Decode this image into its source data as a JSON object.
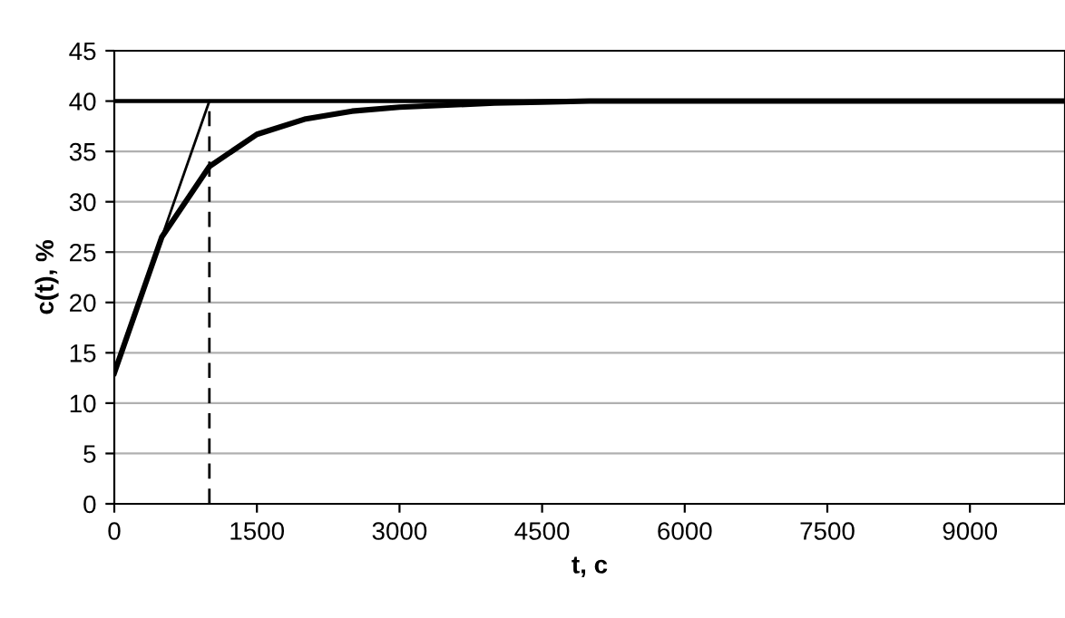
{
  "chart_data": {
    "type": "line",
    "xlabel": "t, c",
    "ylabel": "c(t), %",
    "xlim": [
      0,
      10000
    ],
    "xticks": [
      0,
      1500,
      3000,
      4500,
      6000,
      7500,
      9000
    ],
    "ylim": [
      0,
      45
    ],
    "yticks": [
      0,
      5,
      10,
      15,
      20,
      25,
      30,
      35,
      40,
      45
    ],
    "grid": "y",
    "legend": false,
    "marker": "none",
    "series": [
      {
        "color": "#000000",
        "x": [
          0,
          500,
          1000,
          1500,
          2000,
          2500,
          3000,
          3500,
          4000,
          4500,
          5000,
          6000,
          7000,
          8000,
          9000,
          10000
        ],
        "values": [
          13,
          26.5,
          33.5,
          36.7,
          38.2,
          39,
          39.4,
          39.6,
          39.8,
          39.9,
          40,
          40,
          40,
          40,
          40,
          40
        ]
      },
      {
        "color": "#000000",
        "x": [
          0,
          1000
        ],
        "values": [
          13,
          40
        ]
      },
      {
        "color": "#000000",
        "x": [
          1000,
          1000
        ],
        "values": [
          0,
          40
        ],
        "line_style": "dashed"
      }
    ],
    "ref_lines": [
      {
        "axis": "y",
        "value": 40,
        "color": "#000000"
      }
    ]
  }
}
